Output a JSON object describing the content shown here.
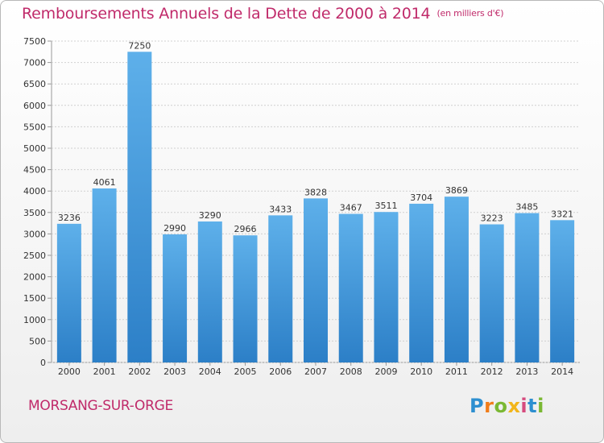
{
  "header": {
    "title": "Remboursements Annuels de la Dette de 2000 à 2014",
    "subtitle": "(en milliers d'€)"
  },
  "footer": {
    "city": "MORSANG-SUR-ORGE",
    "logo": "Proxiti"
  },
  "colors": {
    "accent": "#c02a6a",
    "bar_light": "#5eb0ea",
    "bar_dark": "#2c7fc7"
  },
  "chart_data": {
    "type": "bar",
    "title": "Remboursements Annuels de la Dette de 2000 à 2014",
    "subtitle": "(en milliers d'€)",
    "xlabel": "",
    "ylabel": "",
    "categories": [
      "2000",
      "2001",
      "2002",
      "2003",
      "2004",
      "2005",
      "2006",
      "2007",
      "2008",
      "2009",
      "2010",
      "2011",
      "2012",
      "2013",
      "2014"
    ],
    "values": [
      3236,
      4061,
      7250,
      2990,
      3290,
      2966,
      3433,
      3828,
      3467,
      3511,
      3704,
      3869,
      3223,
      3485,
      3321
    ],
    "ylim": [
      0,
      7500
    ],
    "yticks": [
      0,
      500,
      1000,
      1500,
      2000,
      2500,
      3000,
      3500,
      4000,
      4500,
      5000,
      5500,
      6000,
      6500,
      7000,
      7500
    ],
    "grid": true,
    "legend": "none"
  }
}
